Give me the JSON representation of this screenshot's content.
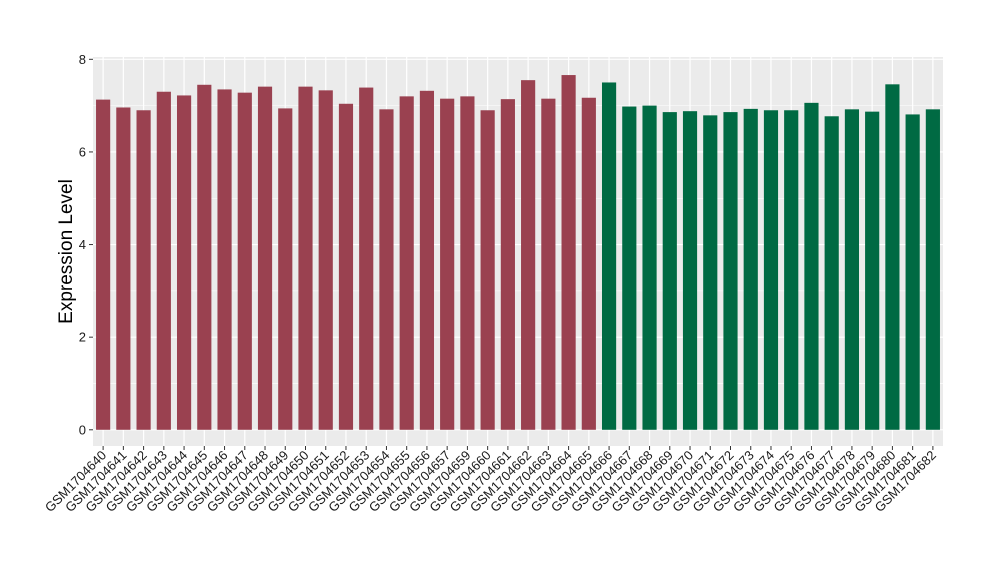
{
  "chart_data": {
    "type": "bar",
    "title": "",
    "xlabel": "",
    "ylabel": "Expression Level",
    "ylim": [
      -0.35,
      8.05
    ],
    "yticks": [
      0,
      2,
      4,
      6,
      8
    ],
    "grid": true,
    "legend": "none",
    "colors": {
      "group1": "#9a4150",
      "group2": "#006a43",
      "panel_bg": "#ebebeb",
      "grid": "#ffffff"
    },
    "categories": [
      "GSM1704640",
      "GSM1704641",
      "GSM1704642",
      "GSM1704643",
      "GSM1704644",
      "GSM1704645",
      "GSM1704646",
      "GSM1704647",
      "GSM1704648",
      "GSM1704649",
      "GSM1704650",
      "GSM1704651",
      "GSM1704652",
      "GSM1704653",
      "GSM1704654",
      "GSM1704655",
      "GSM1704656",
      "GSM1704657",
      "GSM1704659",
      "GSM1704660",
      "GSM1704661",
      "GSM1704662",
      "GSM1704663",
      "GSM1704664",
      "GSM1704665",
      "GSM1704666",
      "GSM1704667",
      "GSM1704668",
      "GSM1704669",
      "GSM1704670",
      "GSM1704671",
      "GSM1704672",
      "GSM1704673",
      "GSM1704674",
      "GSM1704675",
      "GSM1704676",
      "GSM1704677",
      "GSM1704678",
      "GSM1704679",
      "GSM1704680",
      "GSM1704681",
      "GSM1704682"
    ],
    "values": [
      7.13,
      6.96,
      6.9,
      7.3,
      7.22,
      7.45,
      7.35,
      7.28,
      7.41,
      6.94,
      7.41,
      7.33,
      7.04,
      7.39,
      6.92,
      7.2,
      7.32,
      7.15,
      7.2,
      6.9,
      7.14,
      7.55,
      7.15,
      7.66,
      7.17,
      7.5,
      6.98,
      7.0,
      6.86,
      6.88,
      6.79,
      6.86,
      6.93,
      6.9,
      6.9,
      7.06,
      6.77,
      6.92,
      6.87,
      7.46,
      6.81,
      6.92
    ],
    "groups": [
      1,
      1,
      1,
      1,
      1,
      1,
      1,
      1,
      1,
      1,
      1,
      1,
      1,
      1,
      1,
      1,
      1,
      1,
      1,
      1,
      1,
      1,
      1,
      1,
      1,
      2,
      2,
      2,
      2,
      2,
      2,
      2,
      2,
      2,
      2,
      2,
      2,
      2,
      2,
      2,
      2,
      2
    ]
  }
}
